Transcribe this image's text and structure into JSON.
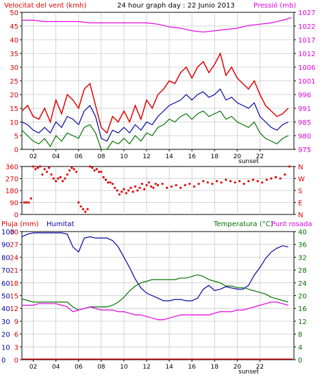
{
  "colors": {
    "red": "#e00000",
    "blue": "#0000a0",
    "green": "#007000",
    "magenta": "#e000e0",
    "grid": "#c8c8c8",
    "frame": "#000000"
  },
  "chart_data": [
    {
      "type": "line",
      "title": "24 hour graph day : 22 Junio 2013",
      "left_axis_title": "Velocitat del vent (kmh)",
      "right_axis_title": "Pressió (mb)",
      "left_ticks": [
        "0",
        "5",
        "10",
        "15",
        "20",
        "25",
        "30",
        "35",
        "40",
        "45",
        "50"
      ],
      "right_ticks": [
        "975",
        "980",
        "985",
        "991",
        "996",
        "1001",
        "1006",
        "1012",
        "1017",
        "1022",
        "1027"
      ],
      "x_ticks": [
        "02",
        "04",
        "06",
        "08",
        "10",
        "12",
        "14",
        "16",
        "18",
        "20",
        "22"
      ],
      "x_marker_label": "sunset",
      "ylim": [
        0,
        50
      ],
      "ylim_right": [
        975,
        1027
      ],
      "grid": true,
      "series": [
        {
          "color": "red",
          "axis": "left",
          "x": [
            0,
            0.5,
            1,
            1.5,
            2,
            2.5,
            3,
            3.5,
            4,
            4.5,
            5,
            5.5,
            6,
            6.5,
            7,
            7.5,
            8,
            8.5,
            9,
            9.5,
            10,
            10.5,
            11,
            11.5,
            12,
            12.5,
            13,
            13.5,
            14,
            14.5,
            15,
            15.5,
            16,
            16.5,
            17,
            17.5,
            18,
            18.5,
            19,
            19.5,
            20,
            20.5,
            21,
            21.5,
            22,
            22.5,
            23,
            23.5
          ],
          "values": [
            14,
            16,
            12,
            11,
            15,
            10,
            18,
            13,
            20,
            18,
            15,
            22,
            24,
            16,
            8,
            6,
            12,
            10,
            14,
            10,
            16,
            11,
            18,
            15,
            20,
            22,
            25,
            24,
            28,
            30,
            26,
            30,
            32,
            28,
            31,
            35,
            27,
            30,
            26,
            24,
            22,
            25,
            20,
            16,
            14,
            12,
            13,
            15
          ]
        },
        {
          "color": "blue",
          "axis": "left",
          "x": [
            0,
            0.5,
            1,
            1.5,
            2,
            2.5,
            3,
            3.5,
            4,
            4.5,
            5,
            5.5,
            6,
            6.5,
            7,
            7.5,
            8,
            8.5,
            9,
            9.5,
            10,
            10.5,
            11,
            11.5,
            12,
            12.5,
            13,
            13.5,
            14,
            14.5,
            15,
            15.5,
            16,
            16.5,
            17,
            17.5,
            18,
            18.5,
            19,
            19.5,
            20,
            20.5,
            21,
            21.5,
            22,
            22.5,
            23,
            23.5
          ],
          "values": [
            10,
            9,
            7,
            6,
            8,
            6,
            10,
            8,
            12,
            11,
            9,
            14,
            16,
            12,
            4,
            3,
            7,
            6,
            8,
            6,
            9,
            7,
            10,
            9,
            12,
            14,
            16,
            17,
            18,
            20,
            18,
            20,
            21,
            19,
            20,
            22,
            18,
            19,
            17,
            16,
            15,
            17,
            12,
            10,
            8,
            7,
            9,
            10
          ]
        },
        {
          "color": "green",
          "axis": "left",
          "x": [
            0,
            0.5,
            1,
            1.5,
            2,
            2.5,
            3,
            3.5,
            4,
            4.5,
            5,
            5.5,
            6,
            6.5,
            7,
            7.5,
            8,
            8.5,
            9,
            9.5,
            10,
            10.5,
            11,
            11.5,
            12,
            12.5,
            13,
            13.5,
            14,
            14.5,
            15,
            15.5,
            16,
            16.5,
            17,
            17.5,
            18,
            18.5,
            19,
            19.5,
            20,
            20.5,
            21,
            21.5,
            22,
            22.5,
            23,
            23.5
          ],
          "values": [
            7,
            5,
            3,
            2,
            4,
            1,
            5,
            3,
            6,
            5,
            4,
            8,
            9,
            6,
            0,
            0,
            3,
            2,
            4,
            2,
            5,
            3,
            6,
            5,
            8,
            9,
            11,
            10,
            12,
            13,
            11,
            13,
            14,
            12,
            13,
            14,
            11,
            12,
            10,
            9,
            8,
            10,
            6,
            4,
            3,
            2,
            4,
            5
          ]
        },
        {
          "color": "magenta",
          "axis": "right",
          "x": [
            0,
            1,
            2,
            3,
            4,
            5,
            6,
            7,
            8,
            9,
            10,
            11,
            12,
            13,
            14,
            15,
            16,
            17,
            18,
            19,
            20,
            21,
            22,
            23,
            23.8
          ],
          "values": [
            1024,
            1024,
            1023.5,
            1023.5,
            1023.5,
            1023.5,
            1023,
            1023,
            1023,
            1023,
            1023,
            1023,
            1022.5,
            1021.5,
            1021,
            1020,
            1019.5,
            1020,
            1020.5,
            1021,
            1022,
            1022.5,
            1023,
            1024,
            1025
          ]
        }
      ]
    },
    {
      "type": "scatter",
      "y_ticks_left": [
        "0",
        "90",
        "180",
        "270",
        "360"
      ],
      "y_ticks_right": [
        "N",
        "E",
        "S",
        "W",
        "N"
      ],
      "x_ticks": [
        "02",
        "04",
        "06",
        "08",
        "10",
        "12",
        "14",
        "16",
        "18",
        "20",
        "22"
      ],
      "ylim": [
        0,
        360
      ],
      "grid": true,
      "series": [
        {
          "color": "red",
          "x": [
            0.2,
            0.4,
            0.6,
            0.8,
            1.0,
            1.2,
            1.4,
            1.6,
            1.8,
            2.0,
            2.2,
            2.4,
            2.6,
            2.8,
            3.0,
            3.2,
            3.4,
            3.6,
            3.8,
            4.0,
            4.2,
            4.4,
            4.6,
            4.8,
            5.0,
            5.2,
            5.4,
            5.6,
            5.8,
            6.0,
            6.2,
            6.4,
            6.6,
            6.8,
            7.0,
            7.2,
            7.4,
            7.6,
            7.8,
            8.0,
            8.2,
            8.4,
            8.6,
            8.8,
            9.0,
            9.2,
            9.4,
            9.6,
            9.8,
            10.0,
            10.2,
            10.4,
            10.6,
            10.8,
            11.0,
            11.2,
            11.4,
            11.6,
            11.8,
            12.0,
            12.4,
            12.8,
            13.2,
            13.6,
            14.0,
            14.4,
            14.8,
            15.2,
            15.6,
            16.0,
            16.4,
            16.8,
            17.2,
            17.6,
            18.0,
            18.4,
            18.8,
            19.2,
            19.6,
            20.0,
            20.4,
            20.8,
            21.2,
            21.6,
            22.0,
            22.4,
            22.8,
            23.2,
            23.6
          ],
          "values": [
            90,
            90,
            90,
            120,
            360,
            340,
            350,
            360,
            300,
            340,
            320,
            350,
            300,
            270,
            250,
            270,
            280,
            250,
            270,
            300,
            330,
            350,
            340,
            320,
            90,
            60,
            40,
            20,
            40,
            360,
            350,
            330,
            340,
            320,
            320,
            280,
            260,
            240,
            240,
            230,
            200,
            180,
            150,
            170,
            190,
            160,
            180,
            200,
            170,
            210,
            180,
            200,
            230,
            190,
            220,
            240,
            210,
            200,
            230,
            220,
            230,
            200,
            210,
            220,
            200,
            220,
            230,
            210,
            230,
            250,
            240,
            230,
            250,
            240,
            260,
            250,
            240,
            250,
            230,
            250,
            260,
            250,
            240,
            260,
            270,
            280,
            270,
            300,
            360
          ]
        }
      ]
    },
    {
      "type": "line",
      "left_axis_title": "Pluja (mm)",
      "left_axis_title2": "Humitat",
      "right_axis_title": "Temperatura (°C)",
      "right_axis_title2": "Punt rosada",
      "rain_ticks": [
        "0",
        "10",
        "20",
        "30",
        "40",
        "50",
        "60",
        "70",
        "80",
        "90",
        "100"
      ],
      "left_ticks": [
        "0",
        "3",
        "6",
        "9",
        "12",
        "15",
        "18",
        "21",
        "24",
        "27",
        "30"
      ],
      "right_ticks": [
        "0",
        "4",
        "8",
        "12",
        "16",
        "20",
        "24",
        "28",
        "32",
        "36",
        "40"
      ],
      "x_ticks": [
        "02",
        "04",
        "06",
        "08",
        "10",
        "12",
        "14",
        "16",
        "18",
        "20",
        "22"
      ],
      "x_marker_label": "sunset",
      "ylim": [
        0,
        100
      ],
      "ylim_right": [
        0,
        40
      ],
      "grid": true,
      "series": [
        {
          "color": "blue",
          "axis": "humidity",
          "x": [
            0,
            0.5,
            1,
            1.5,
            2,
            2.5,
            3,
            3.5,
            4,
            4.5,
            5,
            5.5,
            6,
            6.5,
            7,
            7.5,
            8,
            8.5,
            9,
            9.5,
            10,
            10.5,
            11,
            11.5,
            12,
            12.5,
            13,
            13.5,
            14,
            14.5,
            15,
            15.5,
            16,
            16.5,
            17,
            17.5,
            18,
            18.5,
            19,
            19.5,
            20,
            20.5,
            21,
            21.5,
            22,
            22.5,
            23,
            23.5
          ],
          "values": [
            96,
            98,
            99,
            99,
            99,
            99,
            99,
            99,
            98,
            88,
            84,
            95,
            96,
            95,
            95,
            95,
            93,
            88,
            80,
            72,
            63,
            56,
            52,
            50,
            48,
            46,
            46,
            47,
            47,
            46,
            46,
            48,
            55,
            58,
            54,
            55,
            57,
            56,
            55,
            55,
            58,
            66,
            72,
            79,
            84,
            87,
            89,
            88
          ]
        },
        {
          "color": "green",
          "axis": "temperature",
          "x": [
            0,
            0.5,
            1,
            1.5,
            2,
            2.5,
            3,
            3.5,
            4,
            4.5,
            5,
            5.5,
            6,
            6.5,
            7,
            7.5,
            8,
            8.5,
            9,
            9.5,
            10,
            10.5,
            11,
            11.5,
            12,
            12.5,
            13,
            13.5,
            14,
            14.5,
            15,
            15.5,
            16,
            16.5,
            17,
            17.5,
            18,
            18.5,
            19,
            19.5,
            20,
            20.5,
            21,
            21.5,
            22,
            22.5,
            23,
            23.5
          ],
          "values": [
            19,
            18.5,
            18,
            18,
            18,
            18,
            18,
            18,
            18,
            16.5,
            15.5,
            16,
            16.5,
            16.5,
            16.5,
            16.5,
            17,
            18,
            19.5,
            21.5,
            23,
            24,
            24.5,
            25,
            25,
            25,
            25,
            25,
            25.5,
            25.5,
            26,
            26.5,
            26,
            25,
            24.5,
            24,
            23,
            23,
            22.5,
            22.5,
            22,
            21.5,
            21,
            20.5,
            19.5,
            19,
            18.5,
            18
          ]
        },
        {
          "color": "magenta",
          "axis": "temperature",
          "x": [
            0,
            0.5,
            1,
            1.5,
            2,
            2.5,
            3,
            3.5,
            4,
            4.5,
            5,
            5.5,
            6,
            6.5,
            7,
            7.5,
            8,
            8.5,
            9,
            9.5,
            10,
            10.5,
            11,
            11.5,
            12,
            12.5,
            13,
            13.5,
            14,
            14.5,
            15,
            15.5,
            16,
            16.5,
            17,
            17.5,
            18,
            18.5,
            19,
            19.5,
            20,
            20.5,
            21,
            21.5,
            22,
            22.5,
            23,
            23.5
          ],
          "values": [
            17,
            17,
            17,
            17.5,
            17.5,
            17.5,
            17.5,
            17,
            16.5,
            15,
            15.5,
            16,
            16.5,
            16,
            15.5,
            15.5,
            15.5,
            15,
            15,
            14.5,
            14,
            14,
            13.5,
            13,
            12.5,
            12.5,
            13,
            13.5,
            14,
            14,
            14,
            14,
            14,
            14,
            14.5,
            15,
            15,
            15,
            15.5,
            15.5,
            16,
            16.5,
            17,
            17.5,
            18,
            18,
            17.5,
            17
          ]
        },
        {
          "color": "red",
          "axis": "rain",
          "x": [
            0,
            23.9
          ],
          "values": [
            0,
            0
          ]
        }
      ]
    }
  ]
}
